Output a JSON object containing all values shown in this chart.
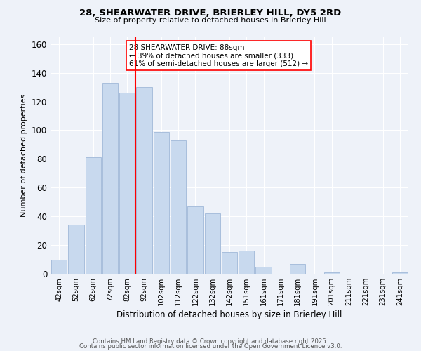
{
  "title1": "28, SHEARWATER DRIVE, BRIERLEY HILL, DY5 2RD",
  "title2": "Size of property relative to detached houses in Brierley Hill",
  "xlabel": "Distribution of detached houses by size in Brierley Hill",
  "ylabel": "Number of detached properties",
  "categories": [
    "42sqm",
    "52sqm",
    "62sqm",
    "72sqm",
    "82sqm",
    "92sqm",
    "102sqm",
    "112sqm",
    "122sqm",
    "132sqm",
    "142sqm",
    "151sqm",
    "161sqm",
    "171sqm",
    "181sqm",
    "191sqm",
    "201sqm",
    "211sqm",
    "221sqm",
    "231sqm",
    "241sqm"
  ],
  "values": [
    10,
    34,
    81,
    133,
    126,
    130,
    99,
    93,
    47,
    42,
    15,
    16,
    5,
    0,
    7,
    0,
    1,
    0,
    0,
    0,
    1
  ],
  "bar_color": "#c8d9ee",
  "bar_edge_color": "#a0b8d8",
  "vline_color": "red",
  "annotation_text": "28 SHEARWATER DRIVE: 88sqm\n← 39% of detached houses are smaller (333)\n61% of semi-detached houses are larger (512) →",
  "annotation_box_color": "white",
  "annotation_box_edge": "red",
  "ylim": [
    0,
    165
  ],
  "yticks": [
    0,
    20,
    40,
    60,
    80,
    100,
    120,
    140,
    160
  ],
  "footer1": "Contains HM Land Registry data © Crown copyright and database right 2025.",
  "footer2": "Contains public sector information licensed under the Open Government Licence v3.0.",
  "background_color": "#eef2f9"
}
